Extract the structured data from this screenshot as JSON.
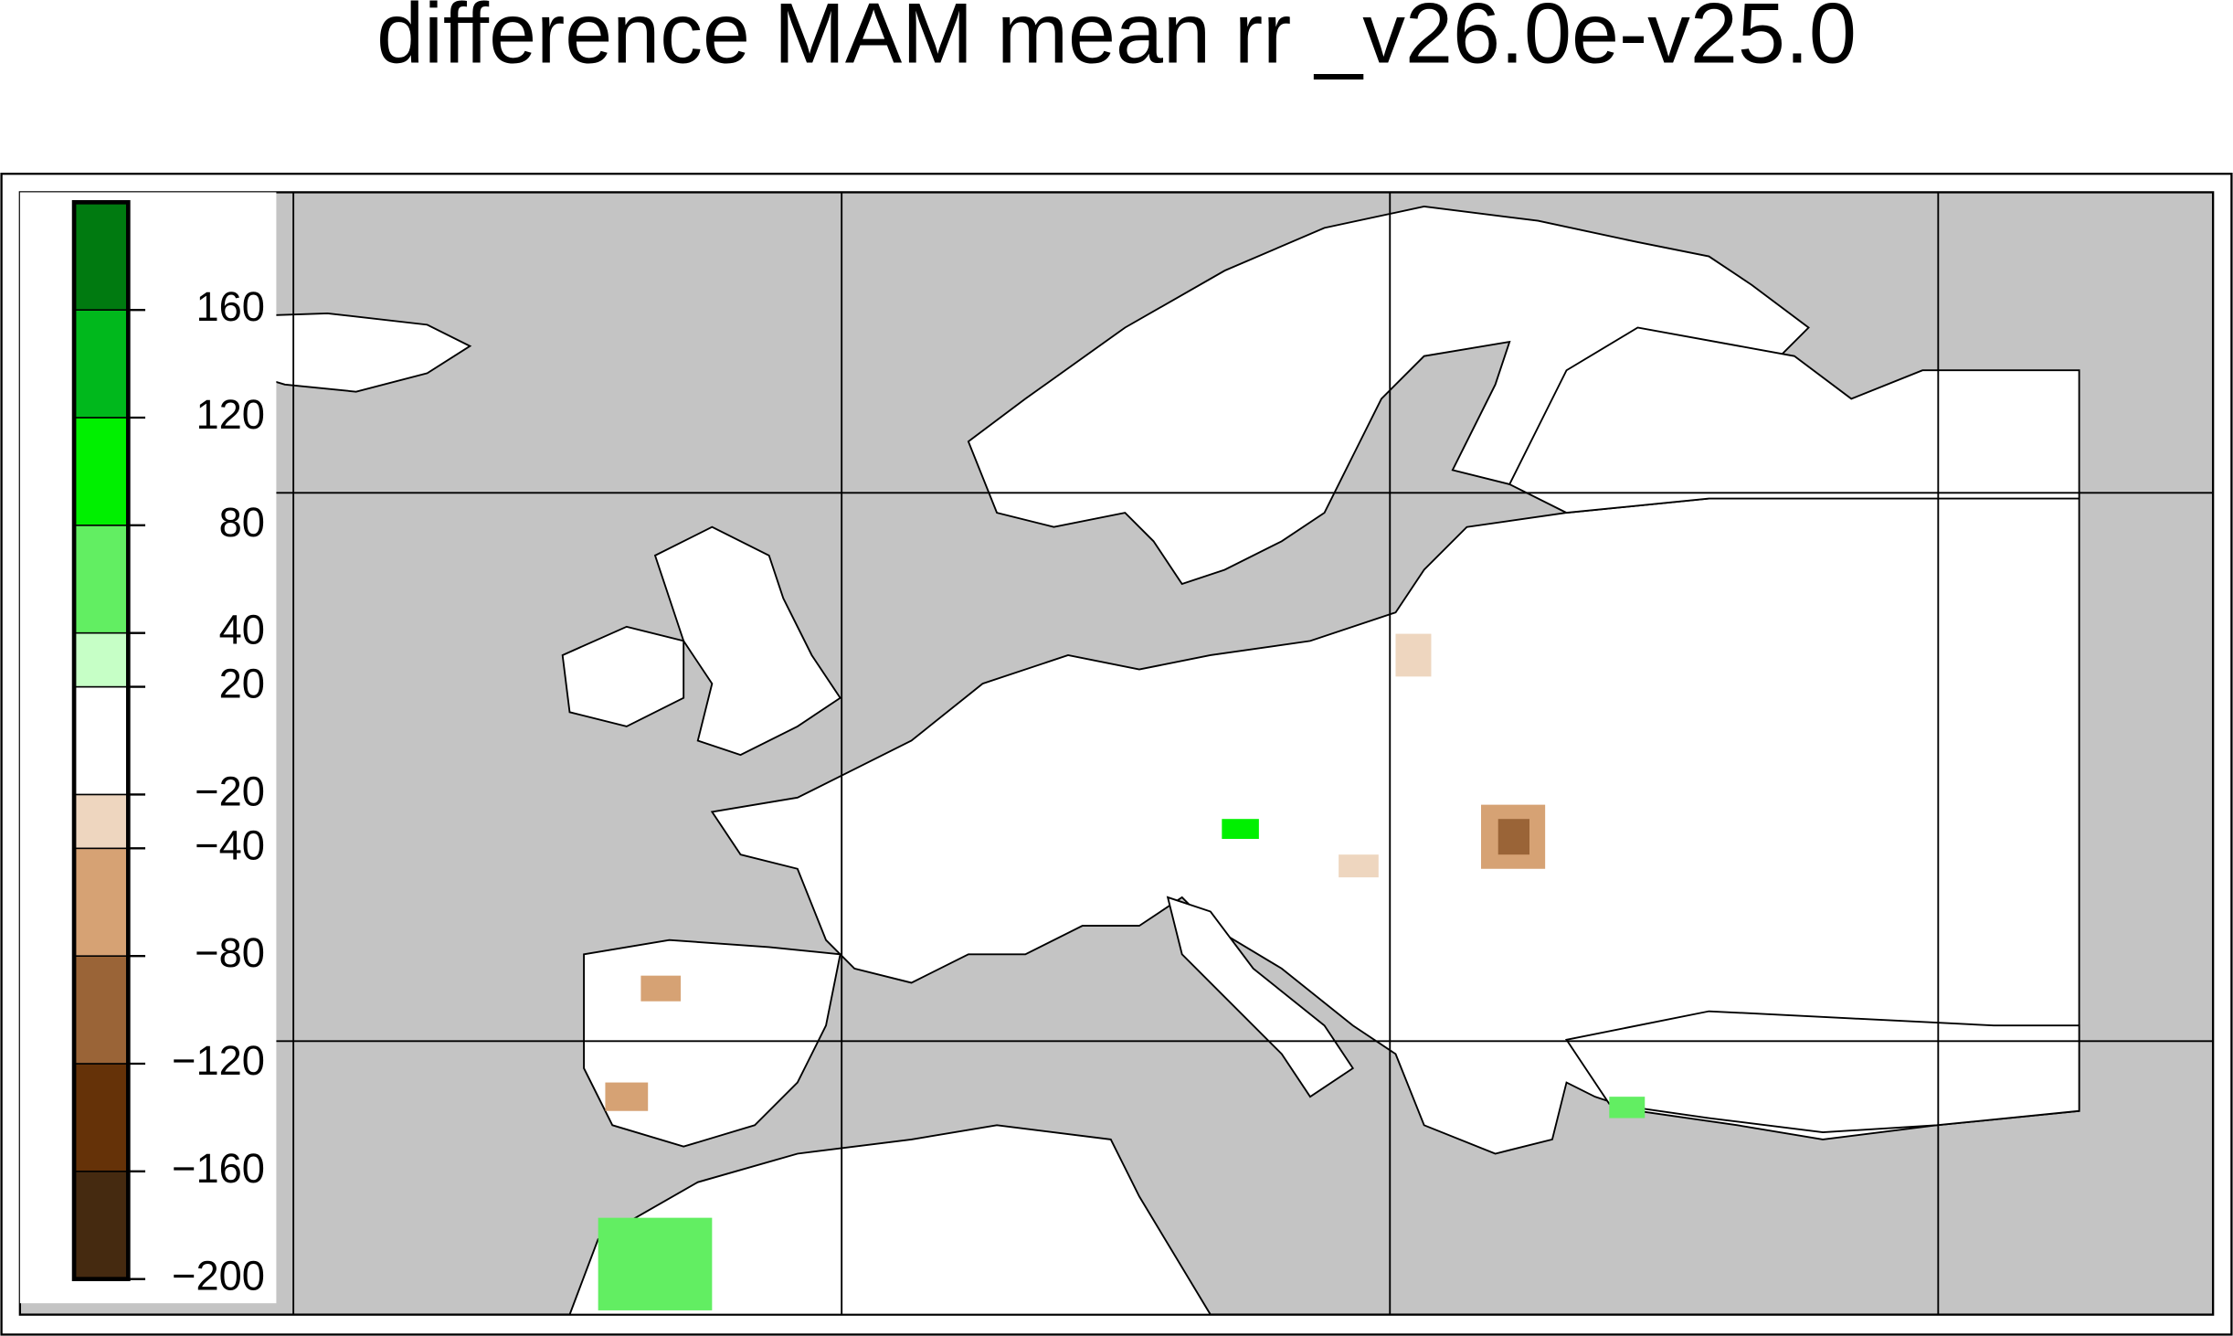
{
  "title": "difference MAM mean rr _v26.0e-v25.0",
  "colorbar": {
    "bounds": [
      -200,
      -160,
      -120,
      -80,
      -40,
      -20,
      20,
      40,
      80,
      120,
      160,
      200
    ],
    "colors": [
      "#452a10",
      "#653208",
      "#9a6437",
      "#d6a274",
      "#eed6bf",
      "#ffffff",
      "#c6ffc6",
      "#62ee62",
      "#00f000",
      "#00b81c",
      "#007a10"
    ],
    "ticks": [
      {
        "value": -200,
        "label": "−200"
      },
      {
        "value": -160,
        "label": "−160"
      },
      {
        "value": -120,
        "label": "−120"
      },
      {
        "value": -80,
        "label": "−80"
      },
      {
        "value": -40,
        "label": "−40"
      },
      {
        "value": -20,
        "label": "−20"
      },
      20,
      40,
      80,
      120,
      160
    ]
  }
}
